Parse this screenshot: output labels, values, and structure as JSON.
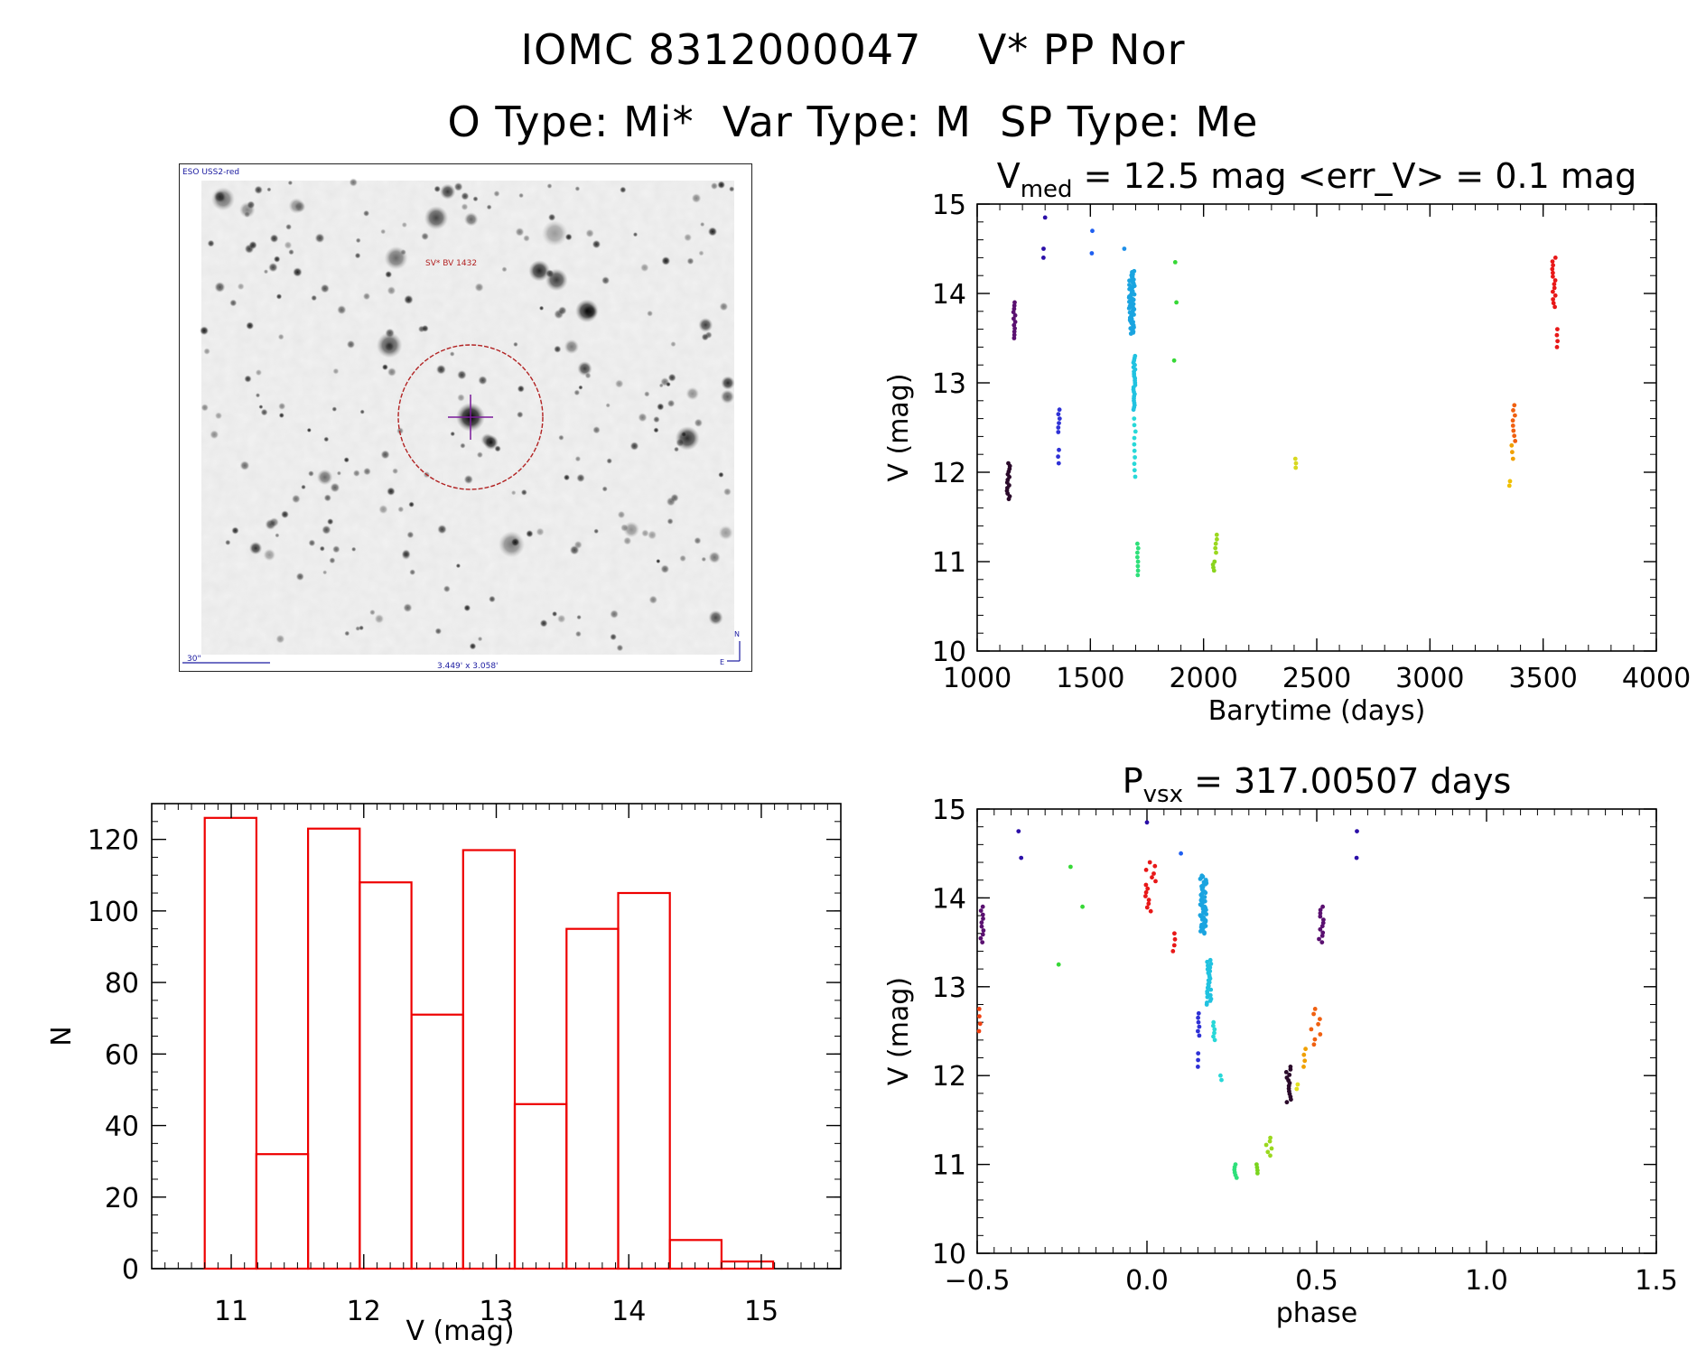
{
  "header": {
    "title": "IOMC 8312000047    V* PP Nor",
    "subtitle": "O Type: Mi*  Var Type: M  SP Type: Me"
  },
  "sky_image": {
    "survey_label": "ESO USS2-red",
    "object_label": "SV* BV 1432",
    "scale_label": "30\"",
    "fov_label": "3.449' x 3.058'",
    "north_label": "N",
    "east_label": "E",
    "colors": {
      "circle": "#b22222",
      "overlay_text": "#1a1aa0",
      "object_text": "#b22222"
    }
  },
  "chart_data": [
    {
      "id": "lightcurve",
      "type": "scatter",
      "title_main": "V",
      "title_sub": "med",
      "title_rest": " = 12.5 mag <err_V> = 0.1 mag",
      "xlabel": "Barytime (days)",
      "ylabel": "V (mag)",
      "xlim": [
        1000,
        4000
      ],
      "ylim": [
        15,
        10
      ],
      "xticks": [
        1000,
        1500,
        2000,
        2500,
        3000,
        3500,
        4000
      ],
      "yticks": [
        10,
        11,
        12,
        13,
        14,
        15
      ],
      "groups": [
        {
          "x": [
            1130,
            1145
          ],
          "y": [
            11.7,
            12.1
          ],
          "n": 14,
          "color": "#2a0a2a"
        },
        {
          "x": [
            1160,
            1170
          ],
          "y": [
            13.5,
            13.9
          ],
          "n": 12,
          "color": "#5a1070"
        },
        {
          "x": [
            1290,
            1295
          ],
          "y": [
            14.4,
            14.5
          ],
          "n": 2,
          "color": "#2b0fa8"
        },
        {
          "x": [
            1300,
            1305
          ],
          "y": [
            14.85,
            14.85
          ],
          "n": 1,
          "color": "#2b0fa8"
        },
        {
          "x": [
            1355,
            1362
          ],
          "y": [
            12.1,
            12.25
          ],
          "n": 3,
          "color": "#2e31d6"
        },
        {
          "x": [
            1358,
            1365
          ],
          "y": [
            12.45,
            12.7
          ],
          "n": 6,
          "color": "#2e31d6"
        },
        {
          "x": [
            1500,
            1510
          ],
          "y": [
            14.45,
            14.7
          ],
          "n": 2,
          "color": "#1f5ff0"
        },
        {
          "x": [
            1650,
            1660
          ],
          "y": [
            14.5,
            14.5
          ],
          "n": 1,
          "color": "#1f8fe8"
        },
        {
          "x": [
            1670,
            1695
          ],
          "y": [
            13.55,
            14.25
          ],
          "n": 60,
          "color": "#1aa4e0"
        },
        {
          "x": [
            1690,
            1698
          ],
          "y": [
            12.7,
            13.3
          ],
          "n": 25,
          "color": "#20c2e0"
        },
        {
          "x": [
            1693,
            1700
          ],
          "y": [
            11.95,
            12.6
          ],
          "n": 10,
          "color": "#28d8d8"
        },
        {
          "x": [
            1705,
            1712
          ],
          "y": [
            10.85,
            11.2
          ],
          "n": 8,
          "color": "#2ee07a"
        },
        {
          "x": [
            1870,
            1870
          ],
          "y": [
            13.25,
            13.25
          ],
          "n": 1,
          "color": "#36d836"
        },
        {
          "x": [
            1880,
            1880
          ],
          "y": [
            13.9,
            13.9
          ],
          "n": 1,
          "color": "#36d836"
        },
        {
          "x": [
            1875,
            1875
          ],
          "y": [
            14.35,
            14.35
          ],
          "n": 1,
          "color": "#36d836"
        },
        {
          "x": [
            2040,
            2050
          ],
          "y": [
            10.9,
            11.0
          ],
          "n": 4,
          "color": "#8ad41e"
        },
        {
          "x": [
            2050,
            2060
          ],
          "y": [
            11.1,
            11.3
          ],
          "n": 5,
          "color": "#9ad81e"
        },
        {
          "x": [
            2400,
            2410
          ],
          "y": [
            12.05,
            12.15
          ],
          "n": 3,
          "color": "#d8d820"
        },
        {
          "x": [
            3350,
            3355
          ],
          "y": [
            11.85,
            11.9
          ],
          "n": 2,
          "color": "#f0c000"
        },
        {
          "x": [
            3360,
            3370
          ],
          "y": [
            12.15,
            12.3
          ],
          "n": 3,
          "color": "#f0a000"
        },
        {
          "x": [
            3365,
            3380
          ],
          "y": [
            12.35,
            12.75
          ],
          "n": 8,
          "color": "#f06010"
        },
        {
          "x": [
            3540,
            3555
          ],
          "y": [
            13.85,
            14.4
          ],
          "n": 14,
          "color": "#e81818"
        },
        {
          "x": [
            3560,
            3565
          ],
          "y": [
            13.4,
            13.6
          ],
          "n": 4,
          "color": "#e81818"
        }
      ]
    },
    {
      "id": "histogram",
      "type": "bar",
      "xlabel": "V (mag)",
      "ylabel": "N",
      "xlim": [
        10.4,
        15.6
      ],
      "ylim": [
        0,
        130
      ],
      "xticks": [
        11,
        12,
        13,
        14,
        15
      ],
      "yticks": [
        0,
        20,
        40,
        60,
        80,
        100,
        120
      ],
      "bin_edges": [
        10.8,
        11.19,
        11.58,
        11.97,
        12.36,
        12.75,
        13.14,
        13.53,
        13.92,
        14.31,
        14.7,
        15.09
      ],
      "values": [
        126,
        32,
        123,
        108,
        71,
        117,
        46,
        95,
        105,
        8,
        2
      ],
      "color": "#ee0000"
    },
    {
      "id": "phased",
      "type": "scatter",
      "title_main": "P",
      "title_sub": "vsx",
      "title_rest": " = 317.00507 days",
      "xlabel": "phase",
      "ylabel": "V (mag)",
      "xlim": [
        -0.5,
        1.5
      ],
      "ylim": [
        15,
        10
      ],
      "xticks": [
        -0.5,
        0.0,
        0.5,
        1.0,
        1.5
      ],
      "xtick_labels": [
        "−0.5",
        "0.0",
        "0.5",
        "1.0",
        "1.5"
      ],
      "yticks": [
        10,
        11,
        12,
        13,
        14,
        15
      ],
      "groups": [
        {
          "x": [
            0.41,
            0.425
          ],
          "y": [
            11.7,
            12.1
          ],
          "n": 14,
          "color": "#2a0a2a"
        },
        {
          "x": [
            0.505,
            0.52
          ],
          "y": [
            13.5,
            13.9
          ],
          "n": 12,
          "color": "#5a1070"
        },
        {
          "x": [
            -0.49,
            -0.48
          ],
          "y": [
            13.5,
            13.9
          ],
          "n": 10,
          "color": "#5a1070"
        },
        {
          "x": [
            0.61,
            0.625
          ],
          "y": [
            14.45,
            14.75
          ],
          "n": 2,
          "color": "#2b0fa8"
        },
        {
          "x": [
            -0.38,
            -0.37
          ],
          "y": [
            14.45,
            14.75
          ],
          "n": 2,
          "color": "#2b0fa8"
        },
        {
          "x": [
            0.0,
            0.0
          ],
          "y": [
            14.85,
            14.85
          ],
          "n": 1,
          "color": "#2b0fa8"
        },
        {
          "x": [
            0.15,
            0.155
          ],
          "y": [
            12.1,
            12.25
          ],
          "n": 3,
          "color": "#2e31d6"
        },
        {
          "x": [
            0.145,
            0.155
          ],
          "y": [
            12.45,
            12.7
          ],
          "n": 6,
          "color": "#2e31d6"
        },
        {
          "x": [
            0.1,
            0.11
          ],
          "y": [
            14.5,
            14.5
          ],
          "n": 1,
          "color": "#1f5ff0"
        },
        {
          "x": [
            0.155,
            0.175
          ],
          "y": [
            13.6,
            14.25
          ],
          "n": 55,
          "color": "#1aa4e0"
        },
        {
          "x": [
            0.175,
            0.19
          ],
          "y": [
            12.8,
            13.3
          ],
          "n": 25,
          "color": "#20c2e0"
        },
        {
          "x": [
            0.195,
            0.2
          ],
          "y": [
            12.4,
            12.6
          ],
          "n": 6,
          "color": "#28d8d8"
        },
        {
          "x": [
            0.215,
            0.22
          ],
          "y": [
            11.95,
            12.0
          ],
          "n": 2,
          "color": "#28d8d8"
        },
        {
          "x": [
            0.255,
            0.265
          ],
          "y": [
            10.85,
            11.0
          ],
          "n": 6,
          "color": "#2ee07a"
        },
        {
          "x": [
            0.32,
            0.33
          ],
          "y": [
            10.9,
            11.0
          ],
          "n": 4,
          "color": "#7ad41e"
        },
        {
          "x": [
            0.35,
            0.37
          ],
          "y": [
            11.1,
            11.3
          ],
          "n": 6,
          "color": "#9ad81e"
        },
        {
          "x": [
            -0.26,
            -0.26
          ],
          "y": [
            13.25,
            13.25
          ],
          "n": 1,
          "color": "#36d836"
        },
        {
          "x": [
            -0.19,
            -0.19
          ],
          "y": [
            13.9,
            13.9
          ],
          "n": 1,
          "color": "#36d836"
        },
        {
          "x": [
            -0.225,
            -0.225
          ],
          "y": [
            14.35,
            14.35
          ],
          "n": 1,
          "color": "#36d836"
        },
        {
          "x": [
            0.44,
            0.445
          ],
          "y": [
            11.85,
            11.9
          ],
          "n": 2,
          "color": "#e0e020"
        },
        {
          "x": [
            0.46,
            0.47
          ],
          "y": [
            12.1,
            12.3
          ],
          "n": 4,
          "color": "#f0a000"
        },
        {
          "x": [
            0.48,
            0.52
          ],
          "y": [
            12.35,
            12.75
          ],
          "n": 8,
          "color": "#f06010"
        },
        {
          "x": [
            -0.495,
            -0.48
          ],
          "y": [
            12.5,
            12.75
          ],
          "n": 4,
          "color": "#f04010"
        },
        {
          "x": [
            -0.005,
            0.03
          ],
          "y": [
            13.85,
            14.4
          ],
          "n": 14,
          "color": "#e81818"
        },
        {
          "x": [
            0.075,
            0.09
          ],
          "y": [
            13.4,
            13.6
          ],
          "n": 4,
          "color": "#e81818"
        }
      ]
    }
  ]
}
